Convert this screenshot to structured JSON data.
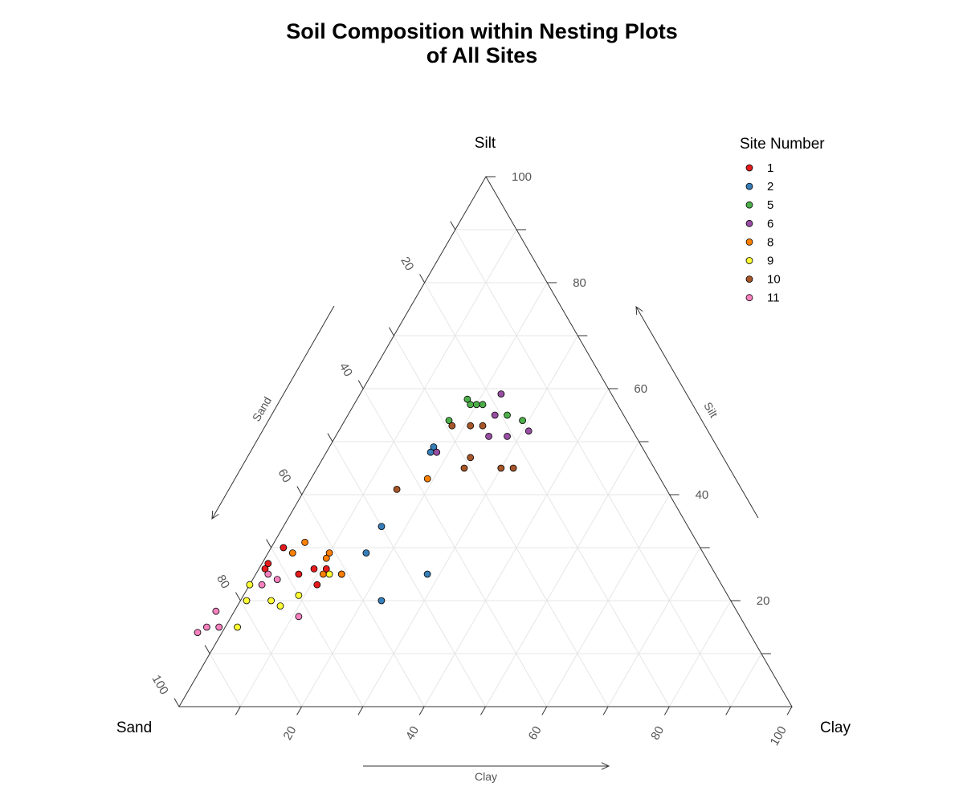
{
  "chart_data": {
    "type": "scatter",
    "subtype": "ternary",
    "title": [
      "Soil Composition within Nesting Plots",
      "of All Sites"
    ],
    "vertices": {
      "left": "Sand",
      "top": "Silt",
      "right": "Clay"
    },
    "axes": {
      "sand": {
        "label": "Sand",
        "ticks": [
          20,
          40,
          60,
          80,
          100
        ]
      },
      "silt": {
        "label": "Silt",
        "ticks": [
          20,
          40,
          60,
          80,
          100
        ]
      },
      "clay": {
        "label": "Clay",
        "ticks": [
          20,
          40,
          60,
          80,
          100
        ]
      }
    },
    "grid": true,
    "legend": {
      "title": "Site Number",
      "placement": "top-right",
      "entries": [
        {
          "label": "1",
          "color": "#e41a1c"
        },
        {
          "label": "2",
          "color": "#377eb8"
        },
        {
          "label": "5",
          "color": "#4daf4a"
        },
        {
          "label": "6",
          "color": "#984ea3"
        },
        {
          "label": "8",
          "color": "#ff7f00"
        },
        {
          "label": "9",
          "color": "#ffff33"
        },
        {
          "label": "10",
          "color": "#a65628"
        },
        {
          "label": "11",
          "color": "#f781bf"
        }
      ]
    },
    "series": [
      {
        "name": "1",
        "color": "#e41a1c",
        "points": [
          {
            "sand": 68,
            "silt": 25,
            "clay": 7
          },
          {
            "sand": 61,
            "silt": 25,
            "clay": 14
          },
          {
            "sand": 68,
            "silt": 30,
            "clay": 2
          },
          {
            "sand": 73,
            "silt": 26,
            "clay": 1
          },
          {
            "sand": 72,
            "silt": 27,
            "clay": 1
          },
          {
            "sand": 65,
            "silt": 26,
            "clay": 9
          },
          {
            "sand": 63,
            "silt": 26,
            "clay": 11
          },
          {
            "sand": 66,
            "silt": 23,
            "clay": 11
          }
        ]
      },
      {
        "name": "2",
        "color": "#377eb8",
        "points": [
          {
            "sand": 50,
            "silt": 34,
            "clay": 16
          },
          {
            "sand": 55,
            "silt": 29,
            "clay": 16
          },
          {
            "sand": 47,
            "silt": 25,
            "clay": 28
          },
          {
            "sand": 57,
            "silt": 20,
            "clay": 23
          },
          {
            "sand": 34,
            "silt": 49,
            "clay": 17
          },
          {
            "sand": 35,
            "silt": 48,
            "clay": 17
          }
        ]
      },
      {
        "name": "5",
        "color": "#4daf4a",
        "points": [
          {
            "sand": 24,
            "silt": 58,
            "clay": 18
          },
          {
            "sand": 24,
            "silt": 57,
            "clay": 19
          },
          {
            "sand": 23,
            "silt": 57,
            "clay": 20
          },
          {
            "sand": 22,
            "silt": 57,
            "clay": 21
          },
          {
            "sand": 29,
            "silt": 54,
            "clay": 17
          },
          {
            "sand": 19,
            "silt": 55,
            "clay": 26
          },
          {
            "sand": 17,
            "silt": 54,
            "clay": 29
          }
        ]
      },
      {
        "name": "6",
        "color": "#984ea3",
        "points": [
          {
            "sand": 18,
            "silt": 59,
            "clay": 23
          },
          {
            "sand": 21,
            "silt": 55,
            "clay": 24
          },
          {
            "sand": 24,
            "silt": 51,
            "clay": 25
          },
          {
            "sand": 21,
            "silt": 51,
            "clay": 28
          },
          {
            "sand": 17,
            "silt": 52,
            "clay": 31
          },
          {
            "sand": 34,
            "silt": 48,
            "clay": 18
          }
        ]
      },
      {
        "name": "8",
        "color": "#ff7f00",
        "points": [
          {
            "sand": 38,
            "silt": 43,
            "clay": 19
          },
          {
            "sand": 67,
            "silt": 29,
            "clay": 4
          },
          {
            "sand": 64,
            "silt": 31,
            "clay": 5
          },
          {
            "sand": 61,
            "silt": 29,
            "clay": 10
          },
          {
            "sand": 64,
            "silt": 25,
            "clay": 11
          },
          {
            "sand": 62,
            "silt": 28,
            "clay": 10
          },
          {
            "sand": 61,
            "silt": 25,
            "clay": 14
          }
        ]
      },
      {
        "name": "9",
        "color": "#ffff33",
        "points": [
          {
            "sand": 77,
            "silt": 23,
            "clay": 0
          },
          {
            "sand": 79,
            "silt": 20,
            "clay": 1
          },
          {
            "sand": 75,
            "silt": 20,
            "clay": 5
          },
          {
            "sand": 74,
            "silt": 19,
            "clay": 7
          },
          {
            "sand": 63,
            "silt": 25,
            "clay": 12
          },
          {
            "sand": 70,
            "silt": 21,
            "clay": 9
          },
          {
            "sand": 83,
            "silt": 15,
            "clay": 2
          }
        ]
      },
      {
        "name": "10",
        "color": "#a65628",
        "points": [
          {
            "sand": 44,
            "silt": 41,
            "clay": 15
          },
          {
            "sand": 29,
            "silt": 47,
            "clay": 24
          },
          {
            "sand": 25,
            "silt": 45,
            "clay": 30
          },
          {
            "sand": 31,
            "silt": 45,
            "clay": 24
          },
          {
            "sand": 23,
            "silt": 45,
            "clay": 32
          },
          {
            "sand": 29,
            "silt": 53,
            "clay": 18
          },
          {
            "sand": 26,
            "silt": 53,
            "clay": 21
          },
          {
            "sand": 24,
            "silt": 53,
            "clay": 23
          }
        ]
      },
      {
        "name": "11",
        "color": "#f781bf",
        "points": [
          {
            "sand": 75,
            "silt": 23,
            "clay": 2
          },
          {
            "sand": 72,
            "silt": 24,
            "clay": 4
          },
          {
            "sand": 73,
            "silt": 25,
            "clay": 2
          },
          {
            "sand": 72,
            "silt": 17,
            "clay": 11
          },
          {
            "sand": 85,
            "silt": 18,
            "clay": -3
          },
          {
            "sand": 86,
            "silt": 15,
            "clay": -1
          },
          {
            "sand": 88,
            "silt": 15,
            "clay": -3
          },
          {
            "sand": 90,
            "silt": 14,
            "clay": -4
          }
        ]
      }
    ]
  }
}
